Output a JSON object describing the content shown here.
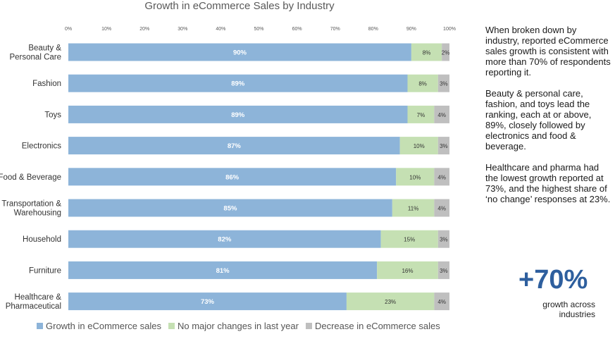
{
  "chart_data": {
    "type": "bar",
    "orientation": "horizontal",
    "stacked": true,
    "title": "Growth in eCommerce Sales by Industry",
    "categories": [
      "Beauty & Personal Care",
      "Fashion",
      "Toys",
      "Electronics",
      "Food & Beverage",
      "Transportation & Warehousing",
      "Household",
      "Furniture",
      "Healthcare & Pharmaceutical"
    ],
    "category_lines": [
      [
        "Beauty &",
        "Personal Care"
      ],
      [
        "Fashion"
      ],
      [
        "Toys"
      ],
      [
        "Electronics"
      ],
      [
        "Food & Beverage"
      ],
      [
        "Transportation &",
        "Warehousing"
      ],
      [
        "Household"
      ],
      [
        "Furniture"
      ],
      [
        "Healthcare &",
        "Pharmaceutical"
      ]
    ],
    "series": [
      {
        "name": "Growth in eCommerce sales",
        "color": "#8db4d9",
        "values": [
          90,
          89,
          89,
          87,
          86,
          85,
          82,
          81,
          73
        ]
      },
      {
        "name": "No major changes in last year",
        "color": "#c5e0b3",
        "values": [
          8,
          8,
          7,
          10,
          10,
          11,
          15,
          16,
          23
        ]
      },
      {
        "name": "Decrease in eCommerce sales",
        "color": "#bfbfbf",
        "values": [
          2,
          3,
          4,
          3,
          4,
          4,
          3,
          3,
          4
        ]
      }
    ],
    "xlim": [
      0,
      100
    ],
    "x_ticks": [
      "0%",
      "10%",
      "20%",
      "30%",
      "40%",
      "50%",
      "60%",
      "70%",
      "80%",
      "90%",
      "100%"
    ],
    "value_suffix": "%",
    "grid": false,
    "legend_position": "bottom"
  },
  "side_panel": {
    "paragraphs": [
      "When broken down by industry, reported eCommerce sales growth is consistent with more than 70% of respondents reporting it.",
      "Beauty & personal care, fashion, and toys lead the ranking, each at or above, 89%, closely followed by electronics and food & beverage.",
      "Healthcare and pharma had the lowest growth reported at 73%, and the highest share of ‘no change’ responses at 23%."
    ],
    "stat_value": "+70%",
    "stat_caption": "growth across industries"
  }
}
